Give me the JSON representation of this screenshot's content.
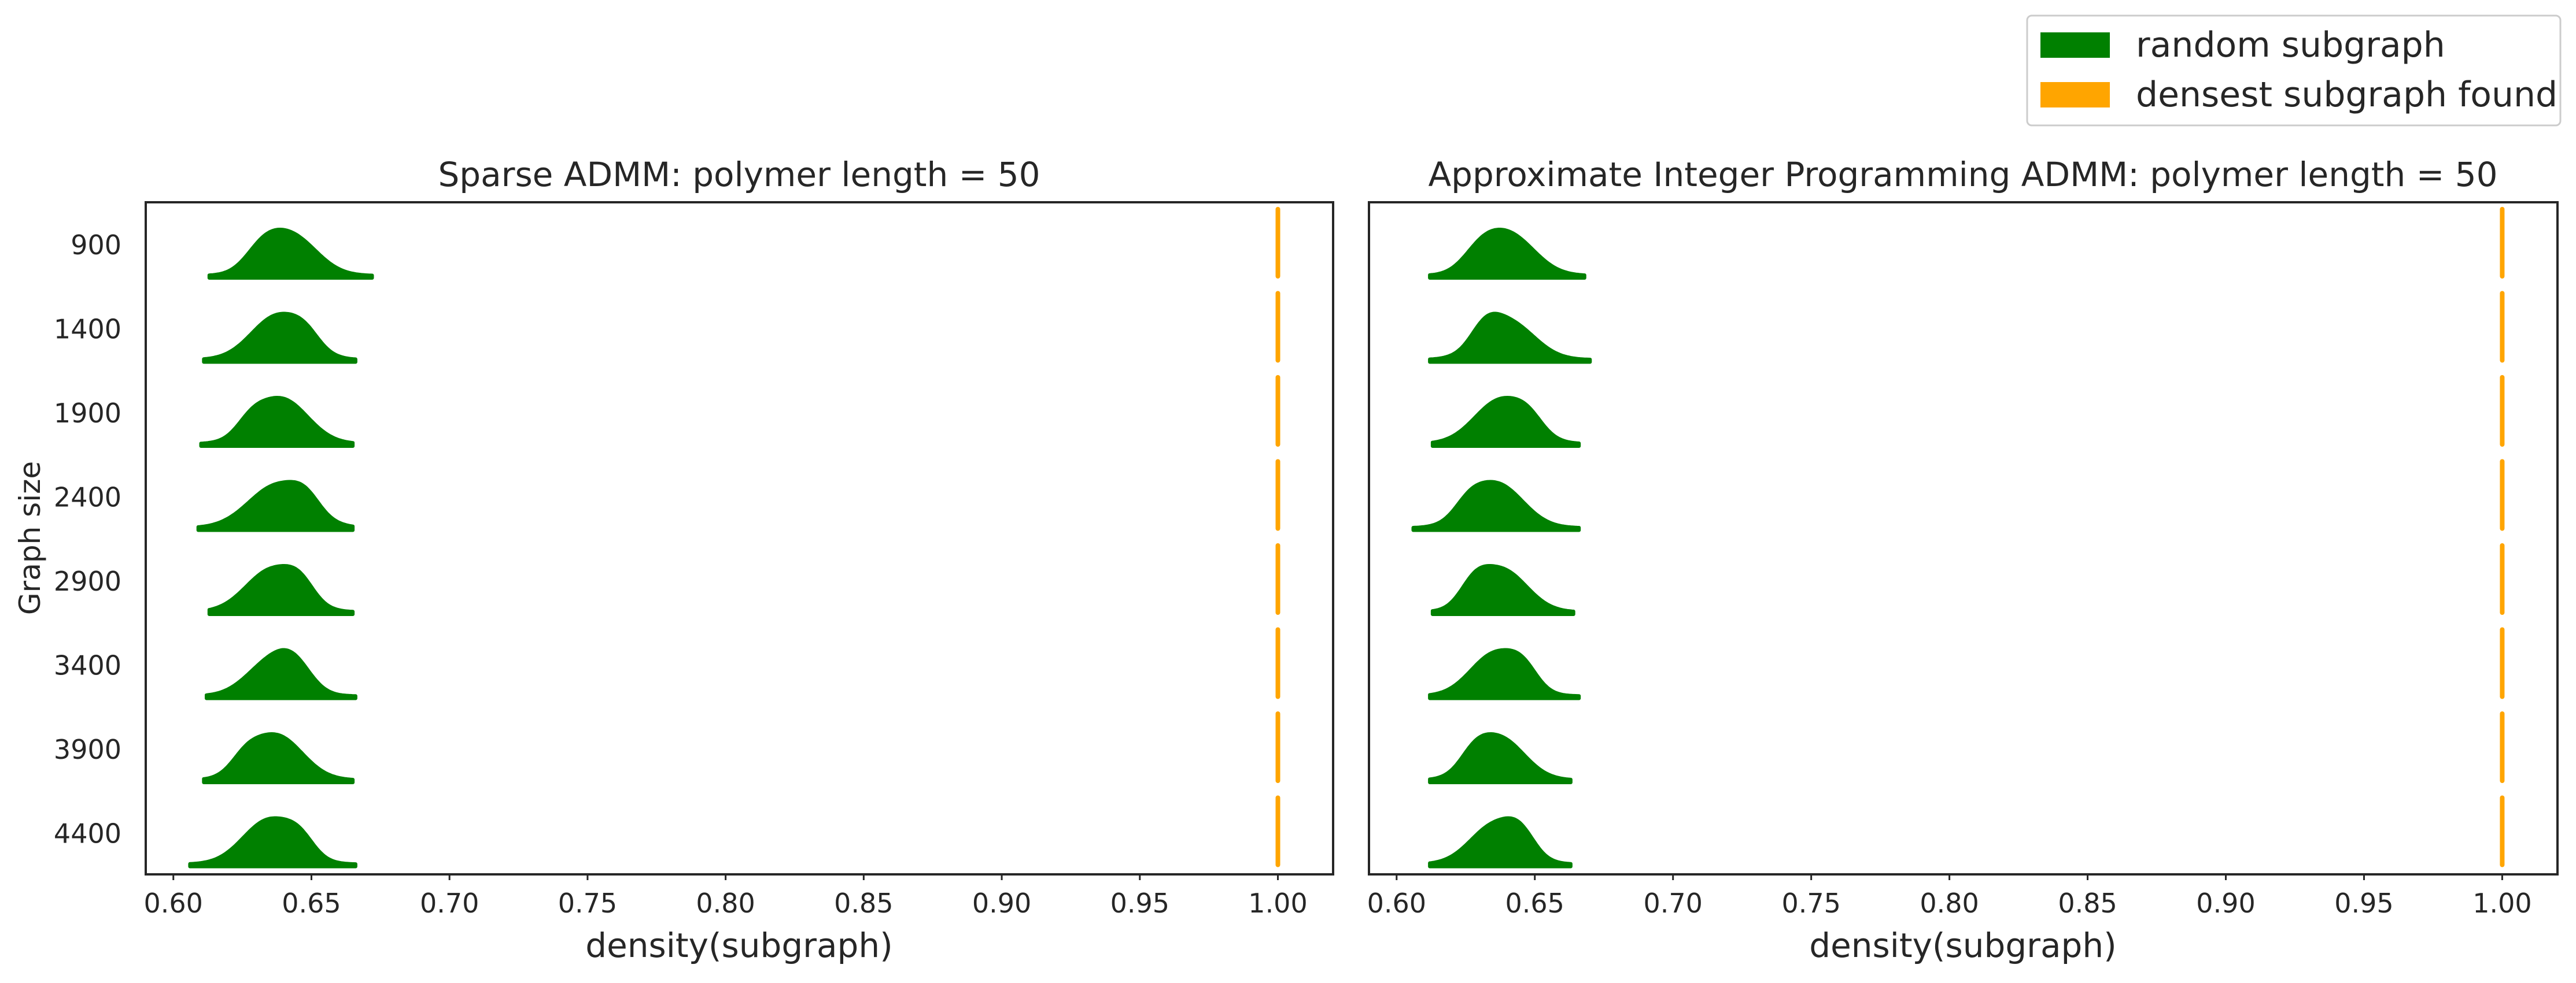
{
  "legend": {
    "position": "top-right",
    "items": [
      {
        "label": "random subgraph",
        "color": "#008000"
      },
      {
        "label": "densest subgraph found",
        "color": "#ffa500"
      }
    ]
  },
  "chart_data": [
    {
      "type": "violin",
      "title": "Sparse ADMM: polymer length = 50",
      "xlabel": "density(subgraph)",
      "ylabel": "Graph size",
      "xlim": [
        0.59,
        1.02
      ],
      "xticks": [
        "0.60",
        "0.65",
        "0.70",
        "0.75",
        "0.80",
        "0.85",
        "0.90",
        "0.95",
        "1.00"
      ],
      "categories": [
        "900",
        "1400",
        "1900",
        "2400",
        "2900",
        "3400",
        "3900",
        "4400"
      ],
      "grid": false,
      "series": [
        {
          "name": "random subgraph",
          "color": "#008000",
          "distributions": [
            {
              "min": 0.613,
              "max": 0.672,
              "peaks": [
                [
                  0.642,
                  0.0095,
                  1.0
                ],
                [
                  0.632,
                  0.006,
                  0.35
                ]
              ]
            },
            {
              "min": 0.611,
              "max": 0.666,
              "peaks": [
                [
                  0.638,
                  0.0095,
                  1.0
                ],
                [
                  0.648,
                  0.005,
                  0.25
                ]
              ]
            },
            {
              "min": 0.61,
              "max": 0.665,
              "peaks": [
                [
                  0.639,
                  0.0095,
                  1.0
                ],
                [
                  0.628,
                  0.005,
                  0.25
                ]
              ]
            },
            {
              "min": 0.609,
              "max": 0.665,
              "peaks": [
                [
                  0.638,
                  0.0105,
                  1.0
                ],
                [
                  0.648,
                  0.005,
                  0.3
                ]
              ]
            },
            {
              "min": 0.613,
              "max": 0.665,
              "peaks": [
                [
                  0.636,
                  0.0095,
                  1.0
                ],
                [
                  0.646,
                  0.005,
                  0.35
                ]
              ]
            },
            {
              "min": 0.612,
              "max": 0.666,
              "peaks": [
                [
                  0.636,
                  0.009,
                  1.0
                ],
                [
                  0.644,
                  0.006,
                  0.5
                ]
              ]
            },
            {
              "min": 0.611,
              "max": 0.665,
              "peaks": [
                [
                  0.637,
                  0.0095,
                  1.0
                ],
                [
                  0.626,
                  0.005,
                  0.25
                ]
              ]
            },
            {
              "min": 0.606,
              "max": 0.666,
              "peaks": [
                [
                  0.635,
                  0.0095,
                  1.0
                ],
                [
                  0.646,
                  0.005,
                  0.3
                ]
              ]
            }
          ]
        },
        {
          "name": "densest subgraph found",
          "color": "#ffa500",
          "values": [
            1.0,
            1.0,
            1.0,
            1.0,
            1.0,
            1.0,
            1.0,
            1.0
          ]
        }
      ]
    },
    {
      "type": "violin",
      "title": "Approximate Integer Programming ADMM: polymer length = 50",
      "xlabel": "density(subgraph)",
      "ylabel": "",
      "xlim": [
        0.59,
        1.02
      ],
      "xticks": [
        "0.60",
        "0.65",
        "0.70",
        "0.75",
        "0.80",
        "0.85",
        "0.90",
        "0.95",
        "1.00"
      ],
      "categories": [
        "900",
        "1400",
        "1900",
        "2400",
        "2900",
        "3400",
        "3900",
        "4400"
      ],
      "grid": false,
      "series": [
        {
          "name": "random subgraph",
          "color": "#008000",
          "distributions": [
            {
              "min": 0.612,
              "max": 0.668,
              "peaks": [
                [
                  0.64,
                  0.0095,
                  1.0
                ],
                [
                  0.63,
                  0.006,
                  0.3
                ]
              ]
            },
            {
              "min": 0.612,
              "max": 0.67,
              "peaks": [
                [
                  0.64,
                  0.0095,
                  1.0
                ],
                [
                  0.632,
                  0.005,
                  0.4
                ]
              ]
            },
            {
              "min": 0.613,
              "max": 0.666,
              "peaks": [
                [
                  0.638,
                  0.0095,
                  1.0
                ],
                [
                  0.648,
                  0.005,
                  0.25
                ]
              ]
            },
            {
              "min": 0.606,
              "max": 0.666,
              "peaks": [
                [
                  0.636,
                  0.0095,
                  1.0
                ],
                [
                  0.626,
                  0.005,
                  0.25
                ]
              ]
            },
            {
              "min": 0.613,
              "max": 0.664,
              "peaks": [
                [
                  0.638,
                  0.009,
                  1.0
                ],
                [
                  0.628,
                  0.005,
                  0.4
                ]
              ]
            },
            {
              "min": 0.612,
              "max": 0.666,
              "peaks": [
                [
                  0.636,
                  0.009,
                  1.0
                ],
                [
                  0.646,
                  0.005,
                  0.35
                ]
              ]
            },
            {
              "min": 0.612,
              "max": 0.663,
              "peaks": [
                [
                  0.637,
                  0.009,
                  1.0
                ],
                [
                  0.628,
                  0.005,
                  0.3
                ]
              ]
            },
            {
              "min": 0.612,
              "max": 0.663,
              "peaks": [
                [
                  0.636,
                  0.009,
                  1.0
                ],
                [
                  0.645,
                  0.005,
                  0.4
                ]
              ]
            }
          ]
        },
        {
          "name": "densest subgraph found",
          "color": "#ffa500",
          "values": [
            1.0,
            1.0,
            1.0,
            1.0,
            1.0,
            1.0,
            1.0,
            1.0
          ]
        }
      ]
    }
  ]
}
